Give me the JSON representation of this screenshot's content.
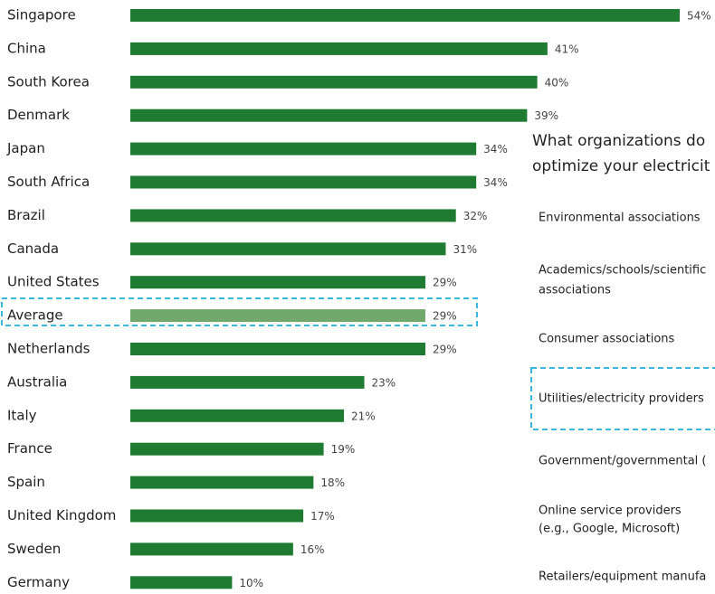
{
  "chart_data": {
    "type": "bar",
    "orientation": "horizontal",
    "categories": [
      "Singapore",
      "China",
      "South Korea",
      "Denmark",
      "Japan",
      "South Africa",
      "Brazil",
      "Canada",
      "United States",
      "Average",
      "Netherlands",
      "Australia",
      "Italy",
      "France",
      "Spain",
      "United Kingdom",
      "Sweden",
      "Germany"
    ],
    "values": [
      54,
      41,
      40,
      39,
      34,
      34,
      32,
      31,
      29,
      29,
      29,
      23,
      21,
      19,
      18,
      17,
      16,
      10
    ],
    "value_labels": [
      "54%",
      "41%",
      "40%",
      "39%",
      "34%",
      "34%",
      "32%",
      "31%",
      "29%",
      "29%",
      "29%",
      "23%",
      "21%",
      "19%",
      "18%",
      "17%",
      "16%",
      "10%"
    ],
    "colors": [
      "#1f7a32",
      "#1f7a32",
      "#1f7a32",
      "#1f7a32",
      "#1f7a32",
      "#1f7a32",
      "#1f7a32",
      "#1f7a32",
      "#1f7a32",
      "#72a86c",
      "#1f7a32",
      "#1f7a32",
      "#1f7a32",
      "#1f7a32",
      "#1f7a32",
      "#1f7a32",
      "#1f7a32",
      "#1f7a32"
    ]
  },
  "side_panel": {
    "title_lines": [
      "What organizations do",
      "optimize your electricit"
    ],
    "items": [
      "Environmental associations",
      "Academics/schools/scientific",
      "associations",
      "Consumer associations",
      "Utilities/electricity providers",
      "Government/governmental (",
      "Online service providers",
      "(e.g., Google, Microsoft)",
      "Retailers/equipment manufa"
    ]
  }
}
